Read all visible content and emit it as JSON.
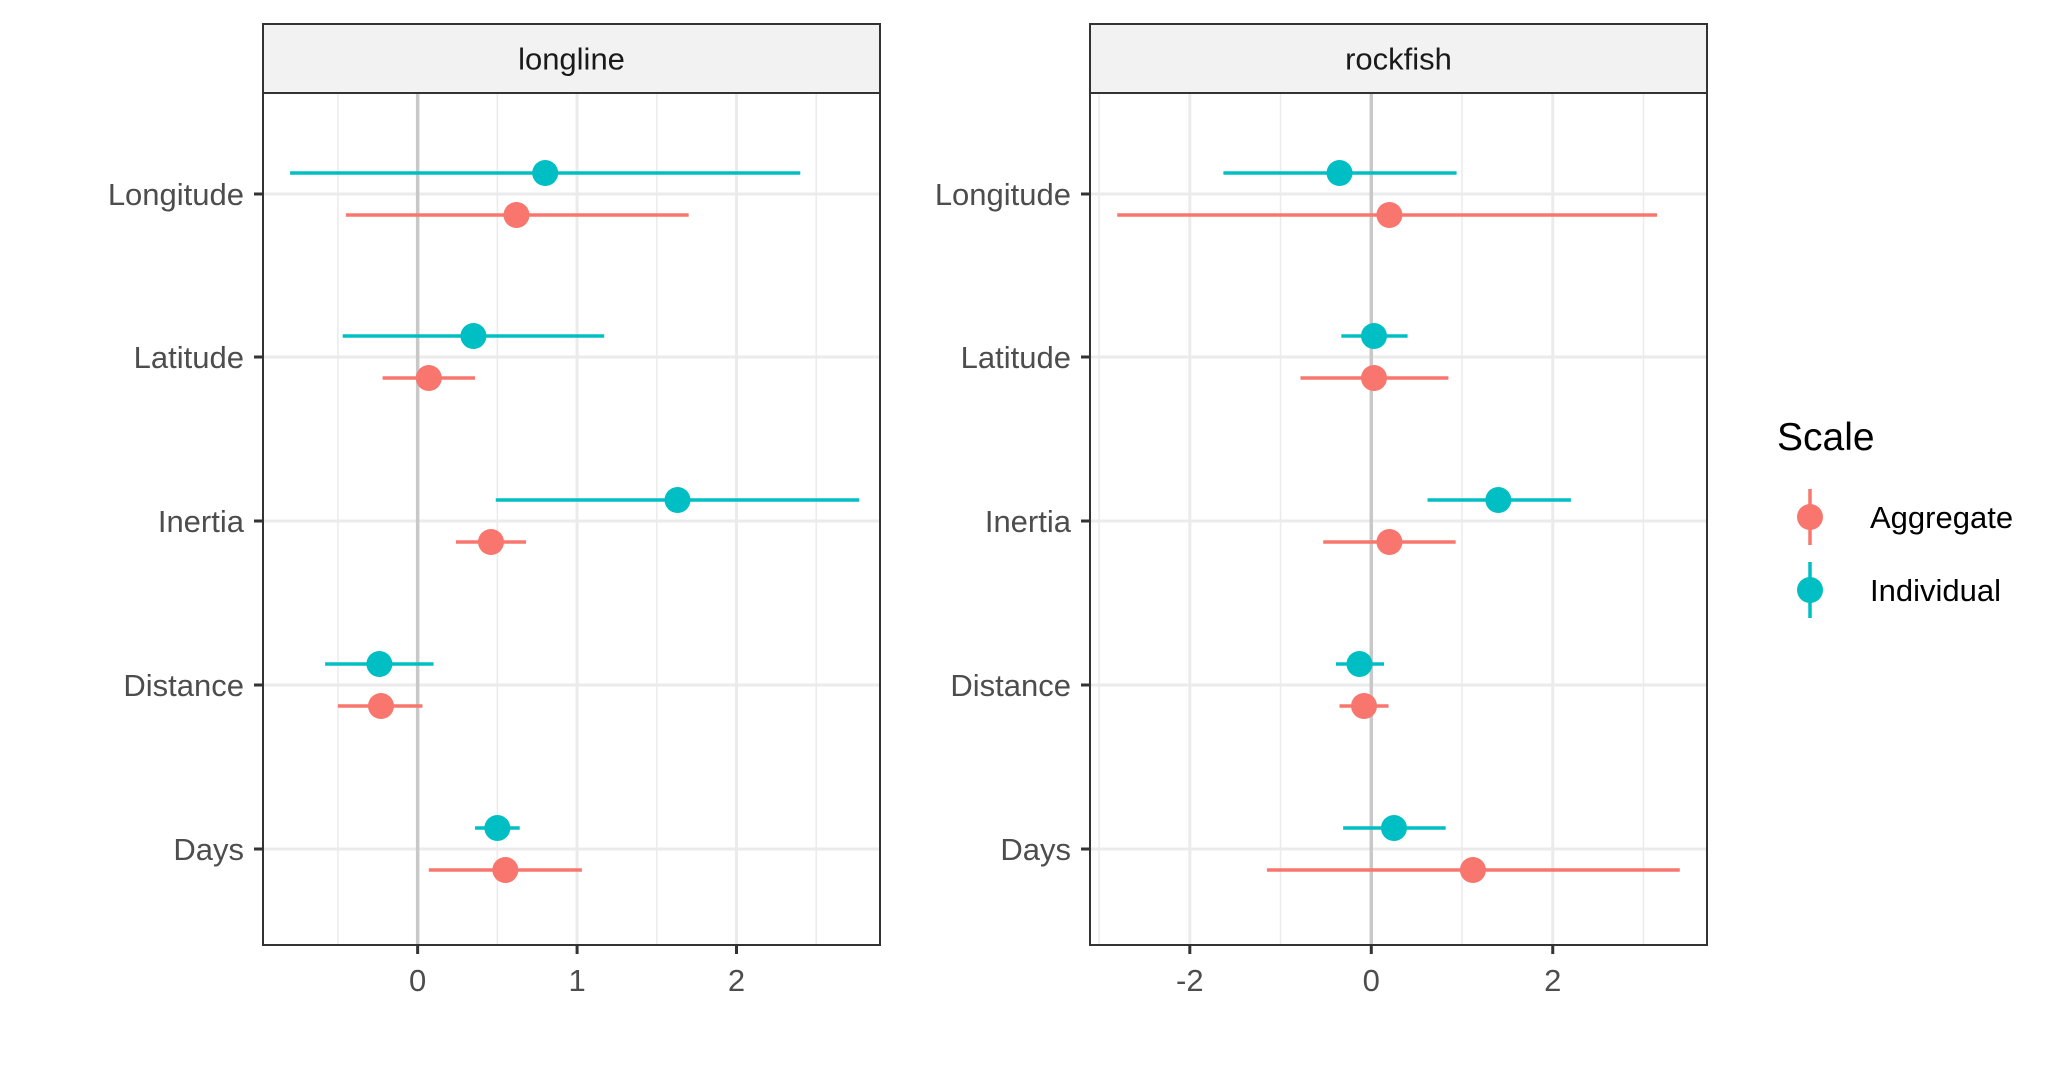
{
  "chart_data": {
    "type": "scatter",
    "variant": "dot-and-whisker (point estimate with interval), faceted",
    "legend": {
      "title": "Scale",
      "position": "right",
      "entries": [
        {
          "name": "Aggregate",
          "color": "#F8766D"
        },
        {
          "name": "Individual",
          "color": "#00BFC4"
        }
      ]
    },
    "categories": [
      "Longitude",
      "Latitude",
      "Inertia",
      "Distance",
      "Days"
    ],
    "grid": true,
    "reference_line_x": 0,
    "panels": [
      {
        "title": "longline",
        "xlim": [
          -0.97,
          2.9
        ],
        "xticks": [
          0,
          1,
          2
        ],
        "xtick_labels": [
          "0",
          "1",
          "2"
        ],
        "series": [
          {
            "name": "Individual",
            "points": [
              {
                "category": "Longitude",
                "estimate": 0.8,
                "lower": -0.8,
                "upper": 2.4
              },
              {
                "category": "Latitude",
                "estimate": 0.35,
                "lower": -0.47,
                "upper": 1.17
              },
              {
                "category": "Inertia",
                "estimate": 1.63,
                "lower": 0.49,
                "upper": 2.77
              },
              {
                "category": "Distance",
                "estimate": -0.24,
                "lower": -0.58,
                "upper": 0.1
              },
              {
                "category": "Days",
                "estimate": 0.5,
                "lower": 0.36,
                "upper": 0.64
              }
            ]
          },
          {
            "name": "Aggregate",
            "points": [
              {
                "category": "Longitude",
                "estimate": 0.62,
                "lower": -0.45,
                "upper": 1.7
              },
              {
                "category": "Latitude",
                "estimate": 0.07,
                "lower": -0.22,
                "upper": 0.36
              },
              {
                "category": "Inertia",
                "estimate": 0.46,
                "lower": 0.24,
                "upper": 0.68
              },
              {
                "category": "Distance",
                "estimate": -0.23,
                "lower": -0.5,
                "upper": 0.03
              },
              {
                "category": "Days",
                "estimate": 0.55,
                "lower": 0.07,
                "upper": 1.03
              }
            ]
          }
        ]
      },
      {
        "title": "rockfish",
        "xlim": [
          -3.1,
          3.7
        ],
        "xticks": [
          -2,
          0,
          2
        ],
        "xtick_labels": [
          "-2",
          "0",
          "2"
        ],
        "series": [
          {
            "name": "Individual",
            "points": [
              {
                "category": "Longitude",
                "estimate": -0.35,
                "lower": -1.63,
                "upper": 0.94
              },
              {
                "category": "Latitude",
                "estimate": 0.03,
                "lower": -0.33,
                "upper": 0.4
              },
              {
                "category": "Inertia",
                "estimate": 1.4,
                "lower": 0.62,
                "upper": 2.2
              },
              {
                "category": "Distance",
                "estimate": -0.13,
                "lower": -0.39,
                "upper": 0.14
              },
              {
                "category": "Days",
                "estimate": 0.25,
                "lower": -0.31,
                "upper": 0.82
              }
            ]
          },
          {
            "name": "Aggregate",
            "points": [
              {
                "category": "Longitude",
                "estimate": 0.2,
                "lower": -2.8,
                "upper": 3.15
              },
              {
                "category": "Latitude",
                "estimate": 0.03,
                "lower": -0.78,
                "upper": 0.85
              },
              {
                "category": "Inertia",
                "estimate": 0.2,
                "lower": -0.53,
                "upper": 0.93
              },
              {
                "category": "Distance",
                "estimate": -0.08,
                "lower": -0.35,
                "upper": 0.19
              },
              {
                "category": "Days",
                "estimate": 1.12,
                "lower": -1.15,
                "upper": 3.4
              }
            ]
          }
        ]
      }
    ]
  }
}
